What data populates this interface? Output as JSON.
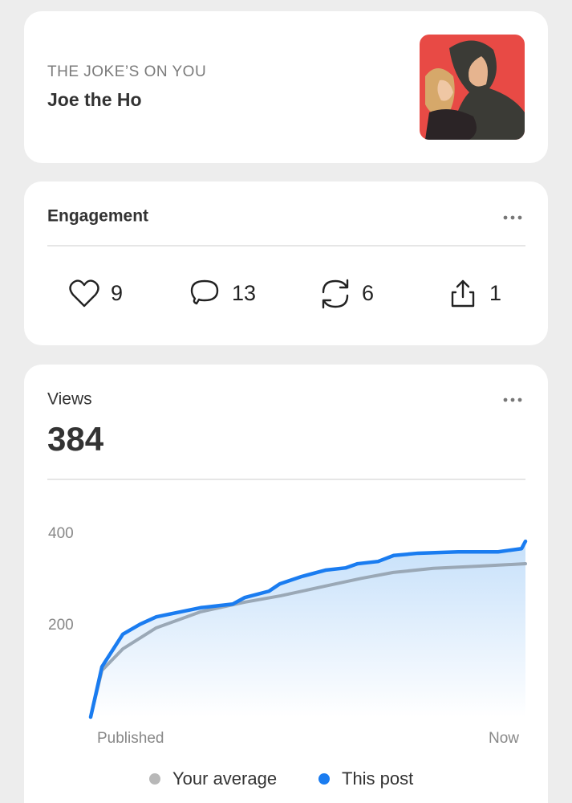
{
  "post": {
    "publication": "THE JOKE’S ON YOU",
    "title": "Joe the Ho"
  },
  "engagement": {
    "title": "Engagement",
    "stats": [
      {
        "icon": "like",
        "value": 9
      },
      {
        "icon": "comment",
        "value": 13
      },
      {
        "icon": "repost",
        "value": 6
      },
      {
        "icon": "share",
        "value": 1
      }
    ]
  },
  "views": {
    "label": "Views",
    "total": 384
  },
  "chart_data": {
    "type": "line",
    "area": true,
    "xlim": [
      0,
      100
    ],
    "xticks": [
      {
        "value": 0,
        "label": "Published"
      },
      {
        "value": 100,
        "label": "Now"
      }
    ],
    "ylim": [
      0,
      420
    ],
    "yticks": [
      200,
      400
    ],
    "grid": false,
    "legend": "bottom",
    "series": [
      {
        "name": "Your average",
        "color": "#9aa8b6",
        "legend_color": "#b8b8b8",
        "x": [
          0,
          2.6,
          7.4,
          15.1,
          25.3,
          35.4,
          43.7,
          53.9,
          62.2,
          69.6,
          78.8,
          89.9,
          100
        ],
        "values": [
          0,
          102,
          149,
          195,
          230,
          251,
          265,
          286,
          303,
          316,
          325,
          330,
          335
        ]
      },
      {
        "name": "This post",
        "color": "#1a7cf0",
        "x": [
          0,
          2.6,
          7.4,
          11.4,
          15.1,
          20.7,
          25.3,
          32.7,
          35.4,
          41,
          43.5,
          48.5,
          54,
          58.7,
          61.4,
          66.1,
          69.7,
          75.3,
          84.5,
          93.7,
          99.1,
          100
        ],
        "values": [
          0,
          110,
          181,
          203,
          219,
          230,
          239,
          247,
          261,
          275,
          291,
          307,
          321,
          326,
          335,
          340,
          353,
          358,
          361,
          361,
          368,
          384
        ]
      }
    ]
  }
}
